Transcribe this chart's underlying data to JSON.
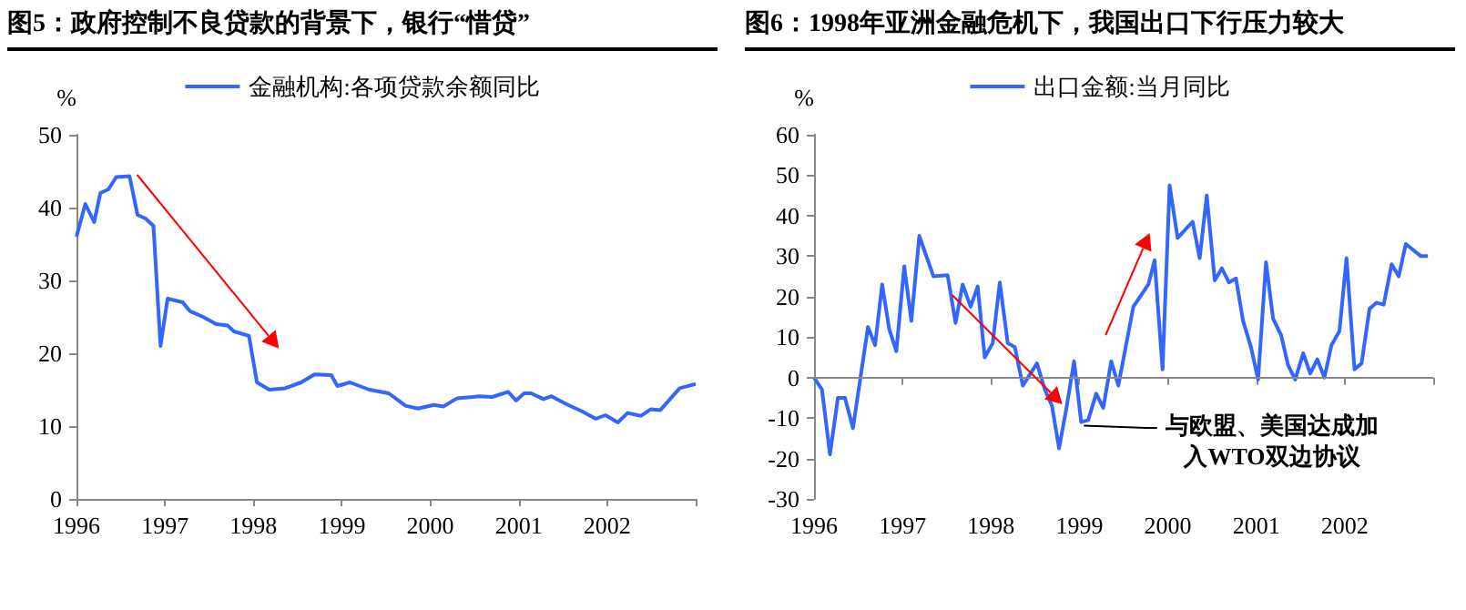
{
  "chart_data": [
    {
      "type": "line",
      "title": "图5：政府控制不良贷款的背景下，银行“惜贷”",
      "ylabel": "%",
      "legend": "top",
      "grid": false,
      "marker": "none",
      "line_style": "solid",
      "x": [
        1996.0,
        1996.1,
        1996.2,
        1996.27,
        1996.36,
        1996.45,
        1996.6,
        1996.69,
        1996.78,
        1996.87,
        1996.95,
        1997.03,
        1997.2,
        1997.28,
        1997.43,
        1997.58,
        1997.71,
        1997.78,
        1997.95,
        1998.04,
        1998.18,
        1998.36,
        1998.54,
        1998.69,
        1998.88,
        1998.95,
        1999.09,
        1999.31,
        1999.53,
        1999.72,
        1999.86,
        2000.04,
        2000.15,
        2000.3,
        2000.48,
        2000.55,
        2000.7,
        2000.88,
        2000.97,
        2001.06,
        2001.14,
        2001.28,
        2001.37,
        2001.54,
        2001.72,
        2001.87,
        2001.98,
        2002.12,
        2002.23,
        2002.38,
        2002.49,
        2002.6,
        2002.82,
        2003.0
      ],
      "series": [
        {
          "name": "金融机构:各项贷款余额同比",
          "color": "#3366ff",
          "values": [
            36,
            40.5,
            38,
            42,
            42.5,
            44.2,
            44.3,
            39,
            38.5,
            37.5,
            21,
            27.5,
            27,
            25.8,
            25,
            24,
            23.8,
            23,
            22.4,
            16,
            15,
            15.2,
            16,
            17.1,
            17,
            15.5,
            16,
            15,
            14.5,
            12.8,
            12.4,
            12.9,
            12.7,
            13.8,
            14,
            14.1,
            14,
            14.7,
            13.5,
            14.5,
            14.5,
            13.7,
            14.1,
            13,
            12,
            11,
            11.5,
            10.5,
            11.8,
            11.4,
            12.3,
            12.2,
            15.2,
            15.8
          ]
        }
      ],
      "xlim": [
        1996,
        2003
      ],
      "xticks": [
        1996,
        1997,
        1998,
        1999,
        2000,
        2001,
        2002,
        {
          "value": 2003,
          "label": null
        }
      ],
      "ylim": [
        0,
        50
      ],
      "yticks": [
        0,
        10,
        20,
        30,
        40,
        50
      ]
    },
    {
      "type": "line",
      "title": "图6：1998年亚洲金融危机下，我国出口下行压力较大",
      "ylabel": "%",
      "legend": "top",
      "grid": false,
      "marker": "none",
      "line_style": "solid",
      "x": [
        1996.0,
        1996.09,
        1996.18,
        1996.27,
        1996.35,
        1996.44,
        1996.61,
        1996.69,
        1996.77,
        1996.85,
        1996.93,
        1997.02,
        1997.1,
        1997.19,
        1997.35,
        1997.51,
        1997.6,
        1997.68,
        1997.77,
        1997.85,
        1997.93,
        1998.02,
        1998.1,
        1998.19,
        1998.27,
        1998.36,
        1998.52,
        1998.61,
        1998.69,
        1998.77,
        1998.85,
        1998.94,
        1999.02,
        1999.1,
        1999.19,
        1999.27,
        1999.36,
        1999.44,
        1999.61,
        1999.78,
        1999.85,
        1999.94,
        2000.02,
        2000.11,
        2000.28,
        2000.36,
        2000.44,
        2000.53,
        2000.61,
        2000.69,
        2000.77,
        2000.85,
        2000.94,
        2001.02,
        2001.11,
        2001.19,
        2001.28,
        2001.36,
        2001.44,
        2001.53,
        2001.61,
        2001.69,
        2001.77,
        2001.85,
        2001.94,
        2002.02,
        2002.11,
        2002.19,
        2002.28,
        2002.36,
        2002.44,
        2002.53,
        2002.61,
        2002.69,
        2002.86,
        2002.94
      ],
      "series": [
        {
          "name": "出口金额:当月同比",
          "color": "#3366ff",
          "values": [
            0,
            -3,
            -19,
            -5,
            -5,
            -12.5,
            12.5,
            8,
            23,
            12,
            6.5,
            27.5,
            14,
            35,
            25,
            25.3,
            13.5,
            23,
            17.5,
            22.5,
            5,
            8.5,
            23.5,
            8.5,
            7.5,
            -2,
            3.5,
            -3,
            -7,
            -17.5,
            -8,
            4,
            -11,
            -10.5,
            -4,
            -7.5,
            4,
            -2,
            17.5,
            23,
            29,
            2,
            47.5,
            34.5,
            38.5,
            29.5,
            45,
            24,
            27,
            23.5,
            24.5,
            14,
            7.5,
            -0.5,
            28.5,
            14.5,
            10.5,
            3,
            -0.5,
            6,
            1,
            4.5,
            0,
            8,
            11.5,
            29.5,
            2,
            3.5,
            17,
            18.5,
            18,
            28,
            25,
            33,
            30,
            30
          ]
        }
      ],
      "xlim": [
        1996,
        2003
      ],
      "xticks": [
        1996,
        1997,
        1998,
        1999,
        2000,
        2001,
        2002,
        {
          "value": 2003,
          "label": null
        }
      ],
      "ref_lines": [
        {
          "axis": "y",
          "value": 0,
          "color": "#888888"
        }
      ],
      "ylim": [
        -30,
        60
      ],
      "yticks": [
        -30,
        -20,
        -10,
        0,
        10,
        20,
        30,
        40,
        50,
        60
      ],
      "annotations": [
        {
          "text": "与欧盟、美国达成加入WTO双边协议",
          "x": 1999.05,
          "y": -11
        }
      ]
    }
  ]
}
